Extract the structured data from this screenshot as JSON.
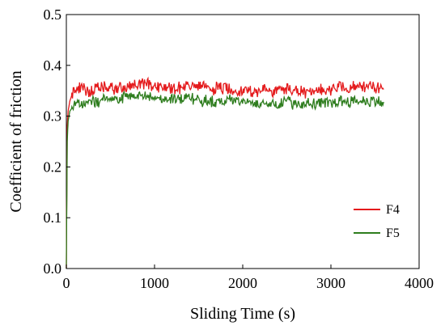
{
  "chart_data": {
    "type": "line",
    "xlabel": "Sliding Time (s)",
    "ylabel": "Coefficient  of friction",
    "xlim": [
      0,
      4000
    ],
    "ylim": [
      0.0,
      0.5
    ],
    "x_ticks": [
      0,
      1000,
      2000,
      3000,
      4000
    ],
    "y_ticks": [
      0.0,
      0.1,
      0.2,
      0.3,
      0.4,
      0.5
    ],
    "x_tick_labels": [
      "0",
      "1000",
      "2000",
      "3000",
      "4000"
    ],
    "y_tick_labels": [
      "0.0",
      "0.1",
      "0.2",
      "0.3",
      "0.4",
      "0.5"
    ],
    "grid": false,
    "legend_position": "bottom-right",
    "series": [
      {
        "name": "F4",
        "color": "#e41a1c",
        "x": [
          0,
          10,
          20,
          40,
          80,
          150,
          250,
          400,
          600,
          800,
          900,
          1000,
          1200,
          1400,
          1600,
          1800,
          2000,
          2200,
          2400,
          2500,
          2600,
          2800,
          3000,
          3100,
          3200,
          3350,
          3500,
          3600
        ],
        "y": [
          0.0,
          0.28,
          0.31,
          0.33,
          0.35,
          0.355,
          0.35,
          0.355,
          0.355,
          0.36,
          0.365,
          0.36,
          0.355,
          0.36,
          0.355,
          0.355,
          0.35,
          0.35,
          0.35,
          0.355,
          0.35,
          0.345,
          0.355,
          0.36,
          0.355,
          0.36,
          0.355,
          0.36
        ]
      },
      {
        "name": "F5",
        "color": "#2e7d1e",
        "x": [
          0,
          10,
          20,
          40,
          80,
          150,
          250,
          400,
          600,
          800,
          900,
          1000,
          1200,
          1400,
          1600,
          1800,
          2000,
          2200,
          2400,
          2500,
          2600,
          2800,
          3000,
          3100,
          3200,
          3350,
          3500,
          3600
        ],
        "y": [
          0.0,
          0.25,
          0.29,
          0.31,
          0.32,
          0.325,
          0.325,
          0.33,
          0.335,
          0.34,
          0.34,
          0.335,
          0.335,
          0.335,
          0.33,
          0.33,
          0.33,
          0.325,
          0.325,
          0.33,
          0.325,
          0.325,
          0.325,
          0.33,
          0.33,
          0.33,
          0.33,
          0.325
        ]
      }
    ]
  }
}
